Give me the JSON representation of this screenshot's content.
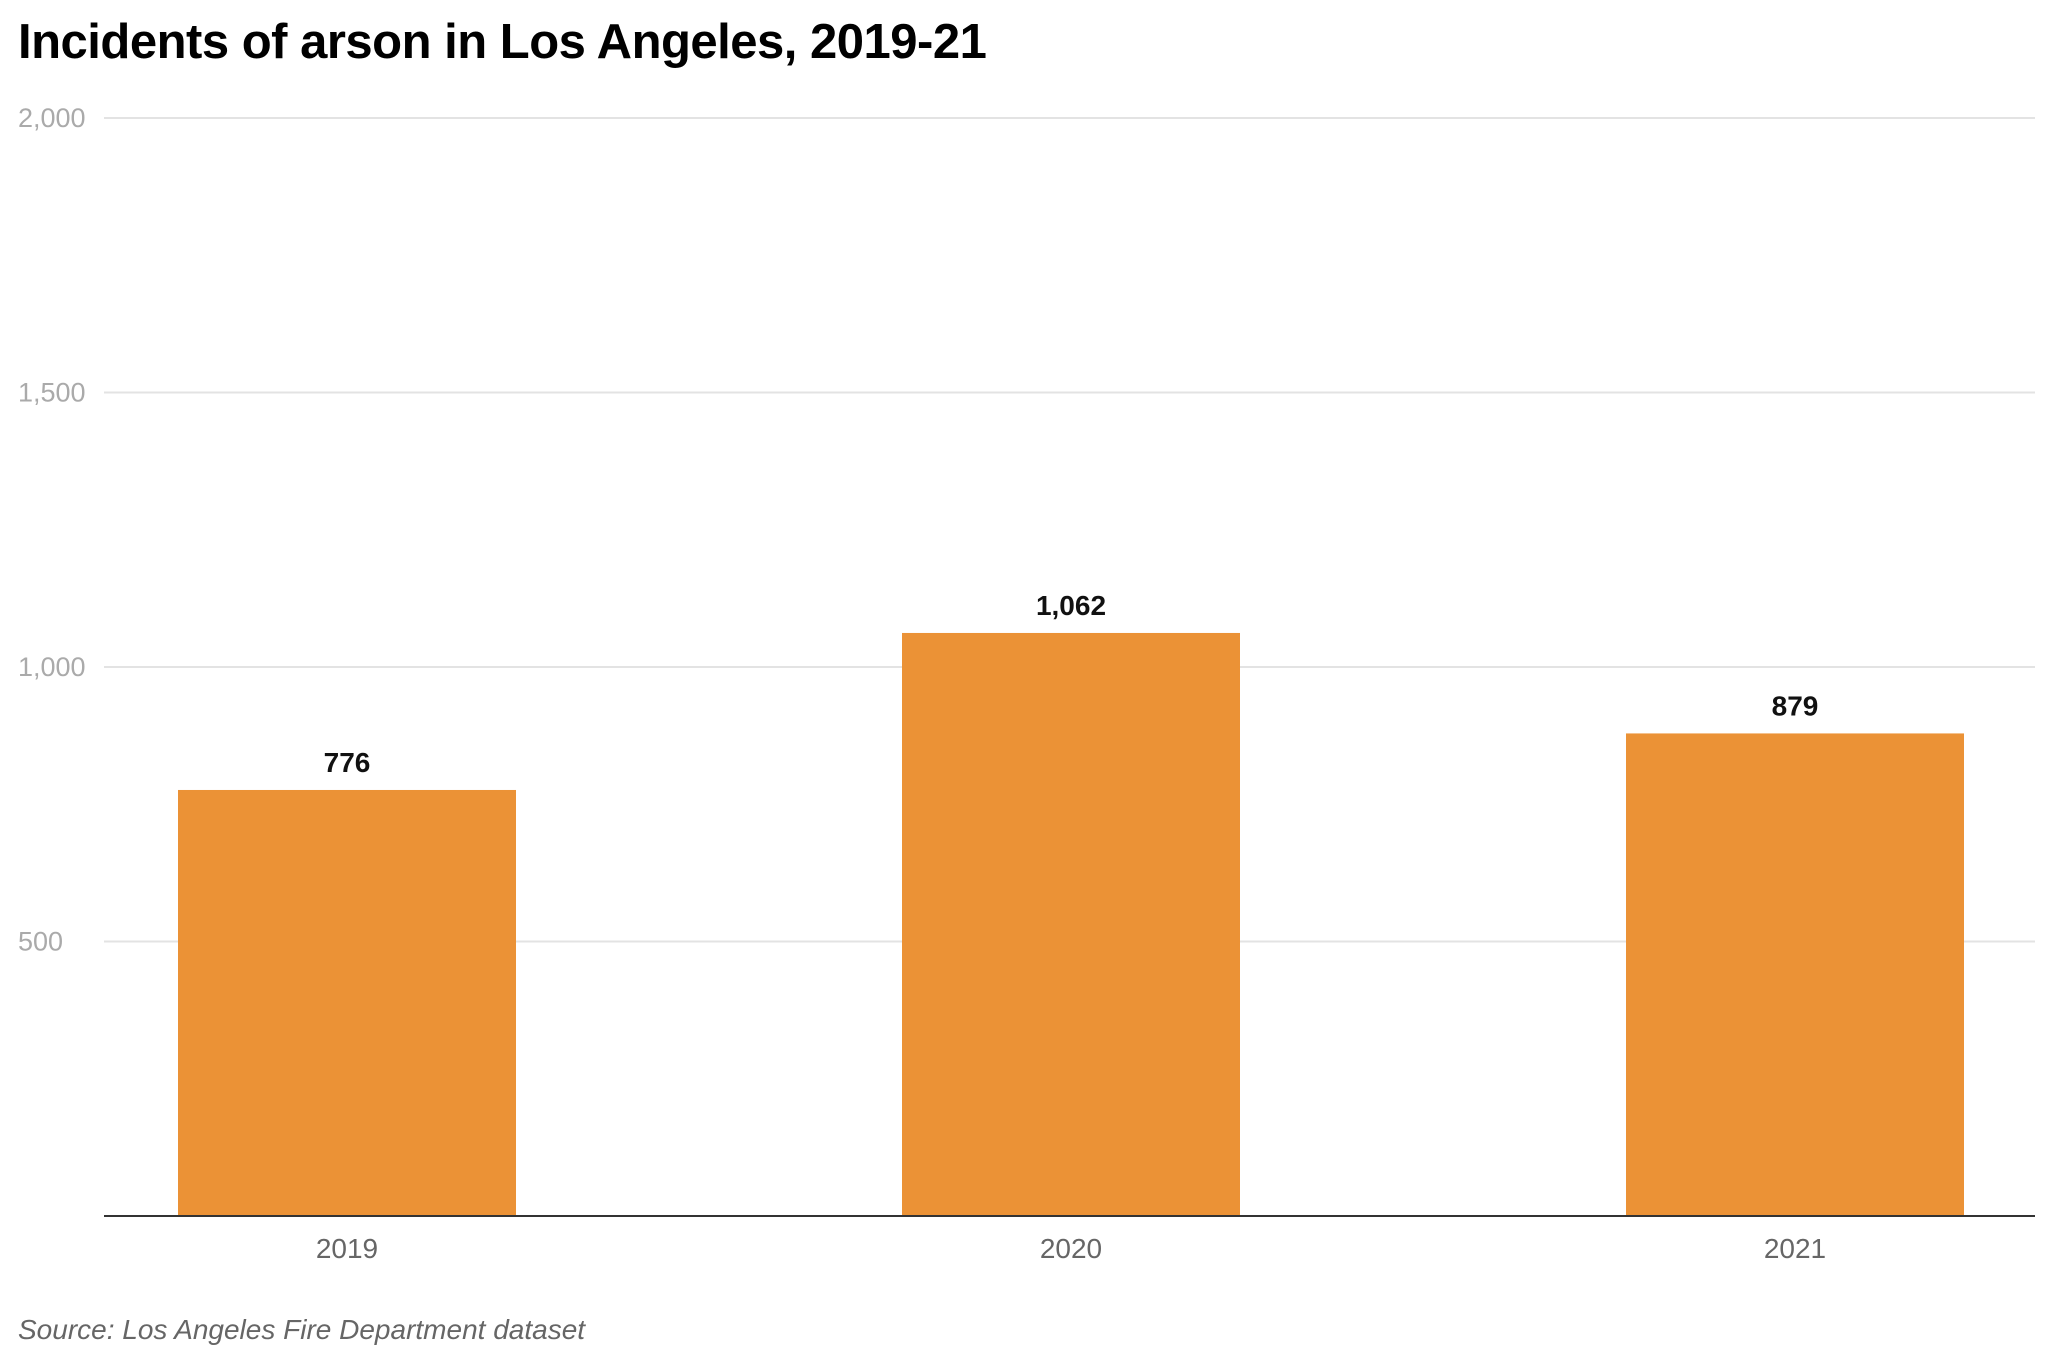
{
  "chart_data": {
    "type": "bar",
    "title": "Incidents of arson in Los Angeles, 2019-21",
    "source": "Source: Los Angeles Fire Department dataset",
    "categories": [
      "2019",
      "2020",
      "2021"
    ],
    "values": [
      776,
      1062,
      879
    ],
    "data_labels": [
      "776",
      "1,062",
      "879"
    ],
    "ylim": [
      0,
      2000
    ],
    "yticks": [
      500,
      1000,
      1500,
      2000
    ],
    "ytick_labels": [
      "500",
      "1,000",
      "1,500",
      "2,000"
    ],
    "grid": true,
    "xlabel": "",
    "ylabel": "",
    "bar_color": "#EB9236"
  }
}
